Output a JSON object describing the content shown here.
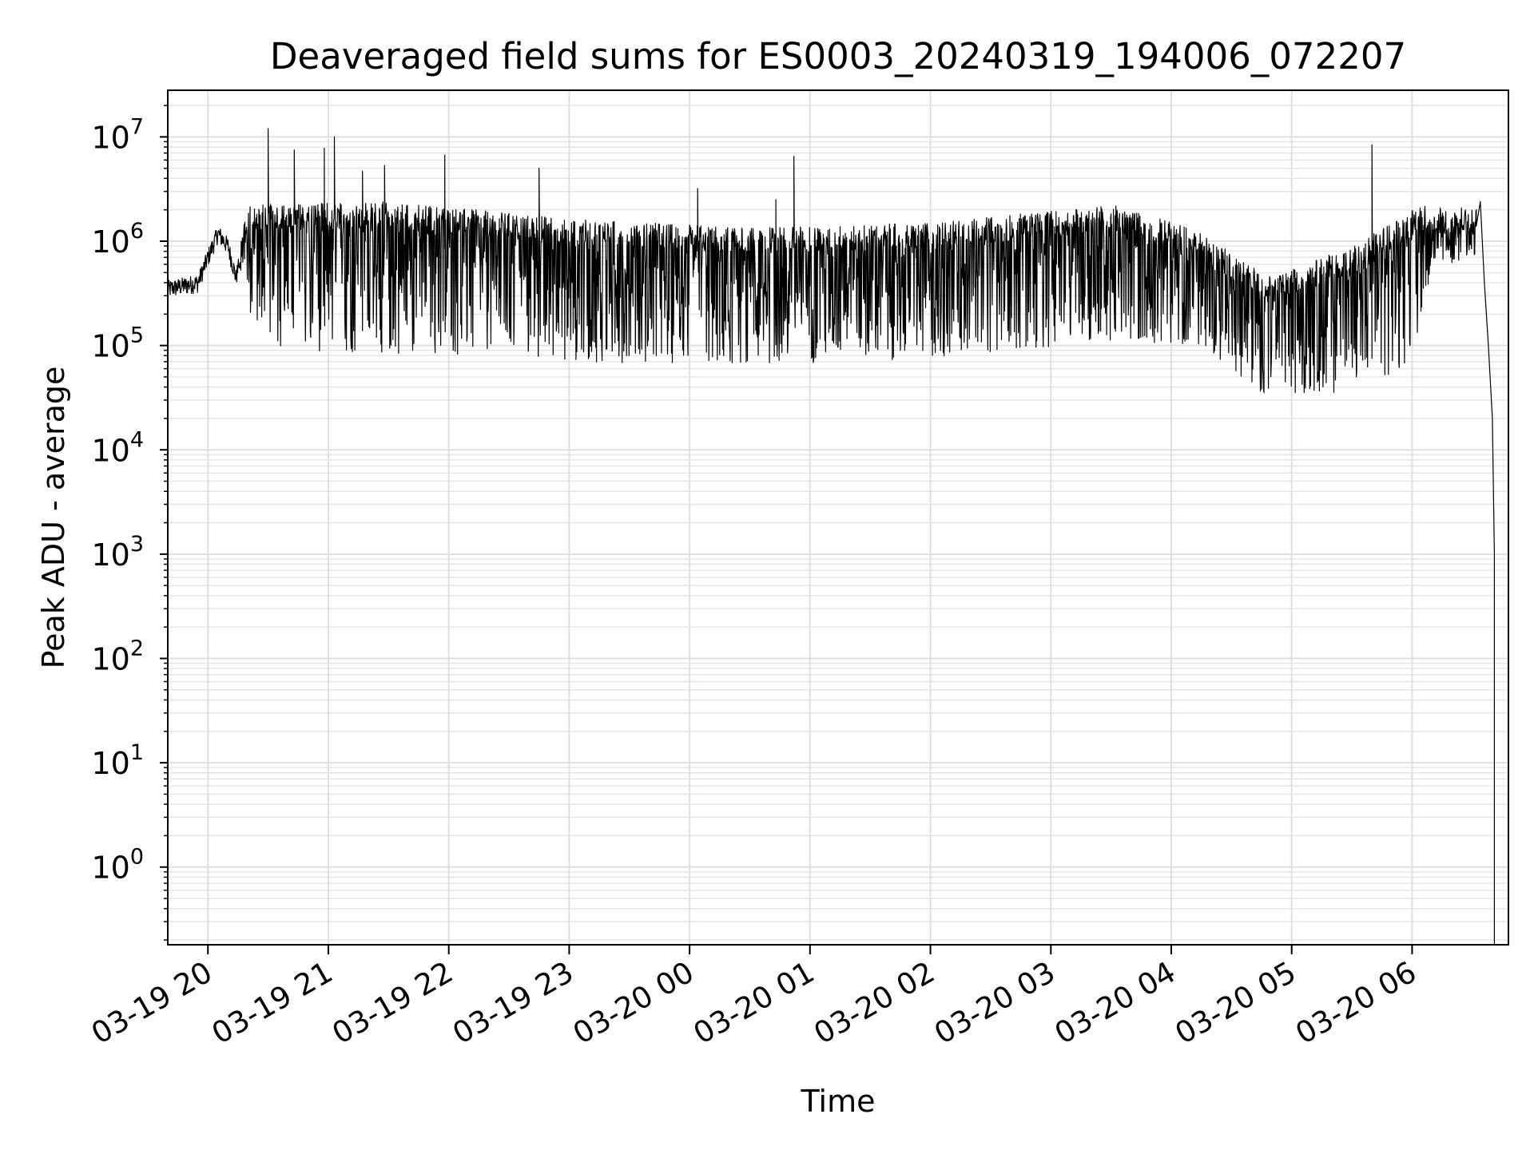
{
  "chart_data": {
    "type": "line",
    "title": "Deaveraged field sums for ES0003_20240319_194006_072207",
    "xlabel": "Time",
    "ylabel": "Peak ADU - average",
    "yscale": "log",
    "ylim": [
      0.18,
      28000000
    ],
    "xlim": [
      "2024-03-19 19:40",
      "2024-03-20 06:48"
    ],
    "grid": true,
    "x_ticks": [
      {
        "t": "2024-03-19 20:00",
        "label": "03-19 20"
      },
      {
        "t": "2024-03-19 21:00",
        "label": "03-19 21"
      },
      {
        "t": "2024-03-19 22:00",
        "label": "03-19 22"
      },
      {
        "t": "2024-03-19 23:00",
        "label": "03-19 23"
      },
      {
        "t": "2024-03-20 00:00",
        "label": "03-20 00"
      },
      {
        "t": "2024-03-20 01:00",
        "label": "03-20 01"
      },
      {
        "t": "2024-03-20 02:00",
        "label": "03-20 02"
      },
      {
        "t": "2024-03-20 03:00",
        "label": "03-20 03"
      },
      {
        "t": "2024-03-20 04:00",
        "label": "03-20 04"
      },
      {
        "t": "2024-03-20 05:00",
        "label": "03-20 05"
      },
      {
        "t": "2024-03-20 06:00",
        "label": "03-20 06"
      }
    ],
    "y_ticks": [
      {
        "exp": 0,
        "base": "10",
        "sup": "0"
      },
      {
        "exp": 1,
        "base": "10",
        "sup": "1"
      },
      {
        "exp": 2,
        "base": "10",
        "sup": "2"
      },
      {
        "exp": 3,
        "base": "10",
        "sup": "3"
      },
      {
        "exp": 4,
        "base": "10",
        "sup": "4"
      },
      {
        "exp": 5,
        "base": "10",
        "sup": "5"
      },
      {
        "exp": 6,
        "base": "10",
        "sup": "6"
      },
      {
        "exp": 7,
        "base": "10",
        "sup": "7"
      }
    ],
    "series": [
      {
        "color": "#000000",
        "baseline_profile": [
          [
            "2024-03-19 19:40",
            350000
          ],
          [
            "2024-03-19 19:55",
            400000
          ],
          [
            "2024-03-19 20:00",
            700000
          ],
          [
            "2024-03-19 20:05",
            1200000
          ],
          [
            "2024-03-19 20:10",
            900000
          ],
          [
            "2024-03-19 20:14",
            450000
          ],
          [
            "2024-03-19 20:20",
            1500000
          ],
          [
            "2024-03-19 21:30",
            1600000
          ],
          [
            "2024-03-19 23:00",
            1100000
          ],
          [
            "2024-03-20 00:30",
            900000
          ],
          [
            "2024-03-20 02:00",
            1000000
          ],
          [
            "2024-03-20 03:30",
            1500000
          ],
          [
            "2024-03-20 04:10",
            900000
          ],
          [
            "2024-03-20 04:50",
            300000
          ],
          [
            "2024-03-20 05:30",
            600000
          ],
          [
            "2024-03-20 06:05",
            1500000
          ],
          [
            "2024-03-20 06:32",
            1400000
          ]
        ],
        "trough_profile": [
          [
            "2024-03-19 20:15",
            600000
          ],
          [
            "2024-03-19 20:25",
            100000
          ],
          [
            "2024-03-19 21:00",
            85000
          ],
          [
            "2024-03-19 22:00",
            80000
          ],
          [
            "2024-03-19 23:00",
            70000
          ],
          [
            "2024-03-20 00:30",
            65000
          ],
          [
            "2024-03-20 02:00",
            75000
          ],
          [
            "2024-03-20 03:30",
            110000
          ],
          [
            "2024-03-20 04:15",
            100000
          ],
          [
            "2024-03-20 04:45",
            35000
          ],
          [
            "2024-03-20 05:30",
            35000
          ],
          [
            "2024-03-20 06:00",
            60000
          ],
          [
            "2024-03-20 06:10",
            600000
          ]
        ],
        "spikes": [
          [
            "2024-03-19 20:30",
            12000000
          ],
          [
            "2024-03-19 20:43",
            7500000
          ],
          [
            "2024-03-19 20:58",
            7800000
          ],
          [
            "2024-03-19 21:03",
            10000000
          ],
          [
            "2024-03-19 21:17",
            4700000
          ],
          [
            "2024-03-19 21:28",
            5300000
          ],
          [
            "2024-03-19 21:58",
            6700000
          ],
          [
            "2024-03-19 22:45",
            5000000
          ],
          [
            "2024-03-20 00:04",
            3200000
          ],
          [
            "2024-03-20 00:43",
            2500000
          ],
          [
            "2024-03-20 00:52",
            6500000
          ],
          [
            "2024-03-20 05:40",
            8400000
          ]
        ],
        "tail": [
          [
            "2024-03-20 06:32",
            1400000
          ],
          [
            "2024-03-20 06:34",
            2400000
          ],
          [
            "2024-03-20 06:36",
            400000
          ],
          [
            "2024-03-20 06:38",
            100000
          ],
          [
            "2024-03-20 06:40",
            20000
          ],
          [
            "2024-03-20 06:41",
            1000
          ],
          [
            "2024-03-20 06:41",
            0.18
          ]
        ]
      }
    ]
  }
}
